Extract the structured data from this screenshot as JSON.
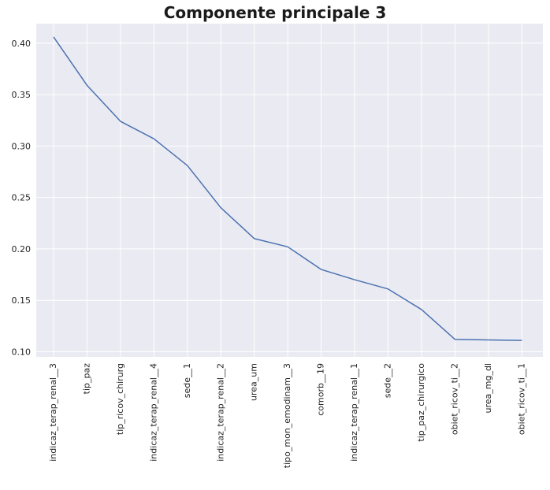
{
  "chart_data": {
    "type": "line",
    "title": "Componente principale 3",
    "xlabel": "",
    "ylabel": "",
    "categories": [
      "indicaz_terap_renal__3",
      "tip_paz",
      "tip_ricov_chirurg",
      "indicaz_terap_renal__4",
      "sede__1",
      "indicaz_terap_renal__2",
      "urea_um",
      "tipo_mon_emodinam__3",
      "comorb__19",
      "indicaz_terap_renal__1",
      "sede__2",
      "tip_paz_chirurgico",
      "obiet_ricov_ti__2",
      "urea_mg_dl",
      "obiet_ricov_ti__1"
    ],
    "series": [
      {
        "values": [
          0.406,
          0.359,
          0.324,
          0.307,
          0.281,
          0.24,
          0.21,
          0.202,
          0.18,
          0.17,
          0.161,
          0.141,
          0.112,
          0.1115,
          0.111
        ]
      }
    ],
    "yticks": [
      "0.10",
      "0.15",
      "0.20",
      "0.25",
      "0.30",
      "0.35",
      "0.40"
    ],
    "ylim": [
      0.095,
      0.419
    ],
    "grid": true,
    "colors": {
      "background": "#eaeaf2",
      "grid": "#ffffff",
      "line": "#4c72b0"
    }
  }
}
